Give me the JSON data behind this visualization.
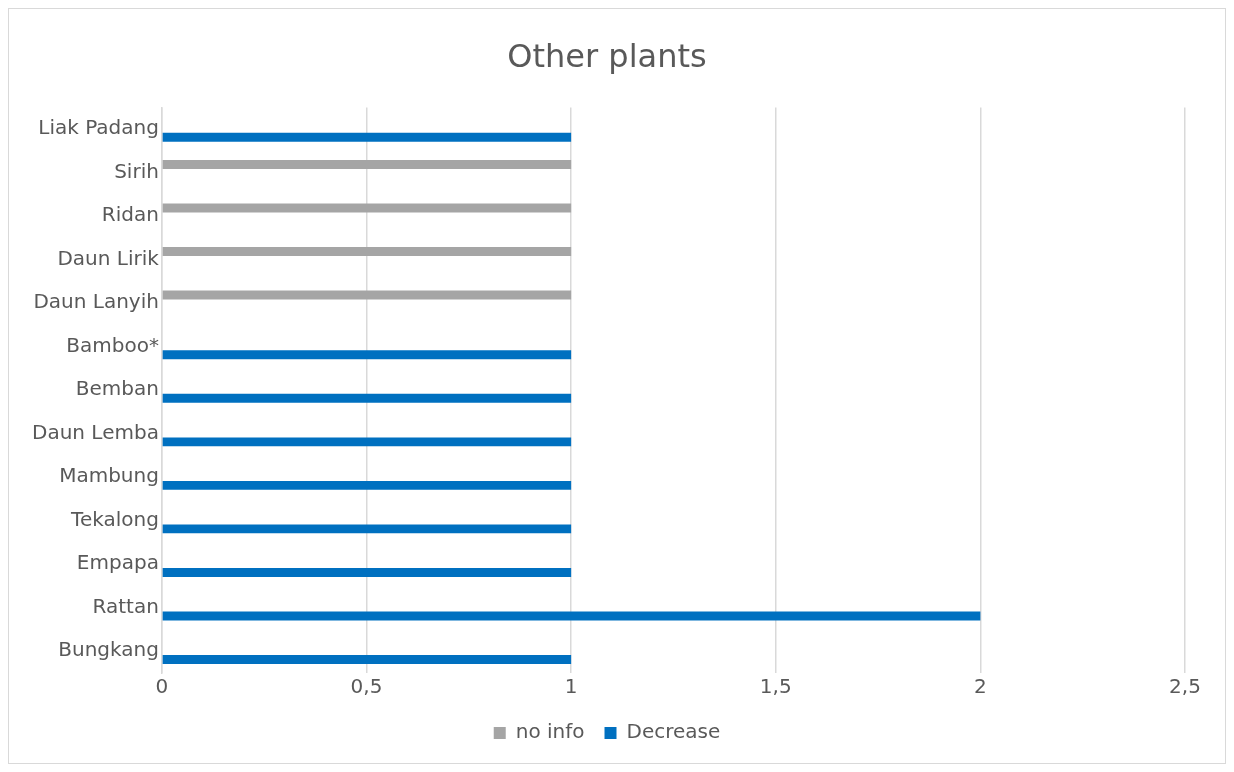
{
  "chart_data": {
    "type": "bar",
    "orientation": "horizontal",
    "title": "Other plants",
    "categories": [
      "Liak Padang",
      "Sirih",
      "Ridan",
      "Daun Lirik",
      "Daun Lanyih",
      "Bamboo*",
      "Bemban",
      "Daun Lemba",
      "Mambung",
      "Tekalong",
      "Empapa",
      "Rattan",
      "Bungkang"
    ],
    "series": [
      {
        "name": "no info",
        "color": "#a5a5a5",
        "values": [
          null,
          1,
          1,
          1,
          1,
          null,
          null,
          null,
          null,
          null,
          null,
          null,
          null
        ]
      },
      {
        "name": "Decrease",
        "color": "#0070c0",
        "values": [
          1,
          null,
          null,
          null,
          null,
          1,
          1,
          1,
          1,
          1,
          1,
          2,
          1
        ]
      }
    ],
    "xlim": [
      0,
      2.5
    ],
    "xticks": [
      0,
      {
        "value": 0.5,
        "label": "0,5"
      },
      1,
      {
        "value": 1.5,
        "label": "1,5"
      },
      2,
      {
        "value": 2.5,
        "label": "2,5"
      }
    ],
    "grid": "x",
    "legend": "bottom"
  }
}
